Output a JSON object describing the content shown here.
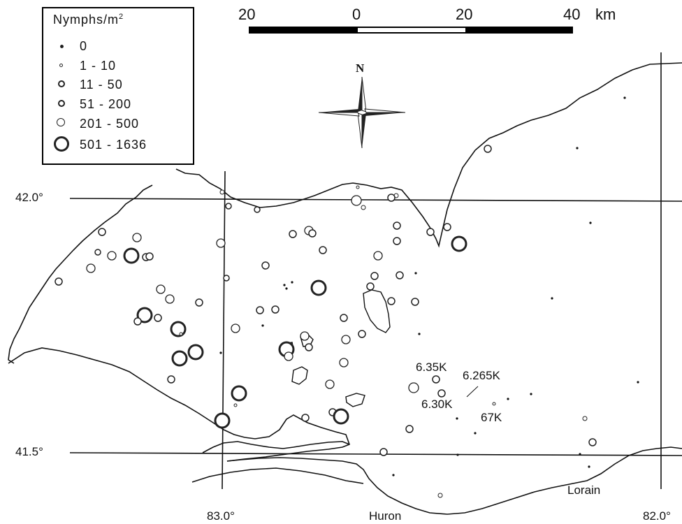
{
  "legend": {
    "title": "Nymphs/m",
    "title_sup": "2",
    "classes": [
      {
        "label": "0",
        "symbol": "dot"
      },
      {
        "label": "1 - 10",
        "symbol": "tiny-circle"
      },
      {
        "label": "11 - 50",
        "symbol": "small-circle"
      },
      {
        "label": "51 - 200",
        "symbol": "small-circle"
      },
      {
        "label": "201 - 500",
        "symbol": "medium-circle"
      },
      {
        "label": "501 - 1636",
        "symbol": "large-circle"
      }
    ]
  },
  "scale": {
    "labels": [
      "20",
      "0",
      "20",
      "40"
    ],
    "unit": "km"
  },
  "north": {
    "label": "N"
  },
  "graticule": {
    "lat_labels": [
      "42.0°",
      "41.5°"
    ],
    "lon_labels": [
      "83.0°",
      "82.0°"
    ]
  },
  "places": {
    "huron": "Huron",
    "lorain": "Lorain"
  },
  "stations": {
    "s1": "6.35K",
    "s2": "6.265K",
    "s3": "6.30K",
    "s4": "67K"
  },
  "colors": {
    "ink": "#111111",
    "paper": "#ffffff"
  }
}
